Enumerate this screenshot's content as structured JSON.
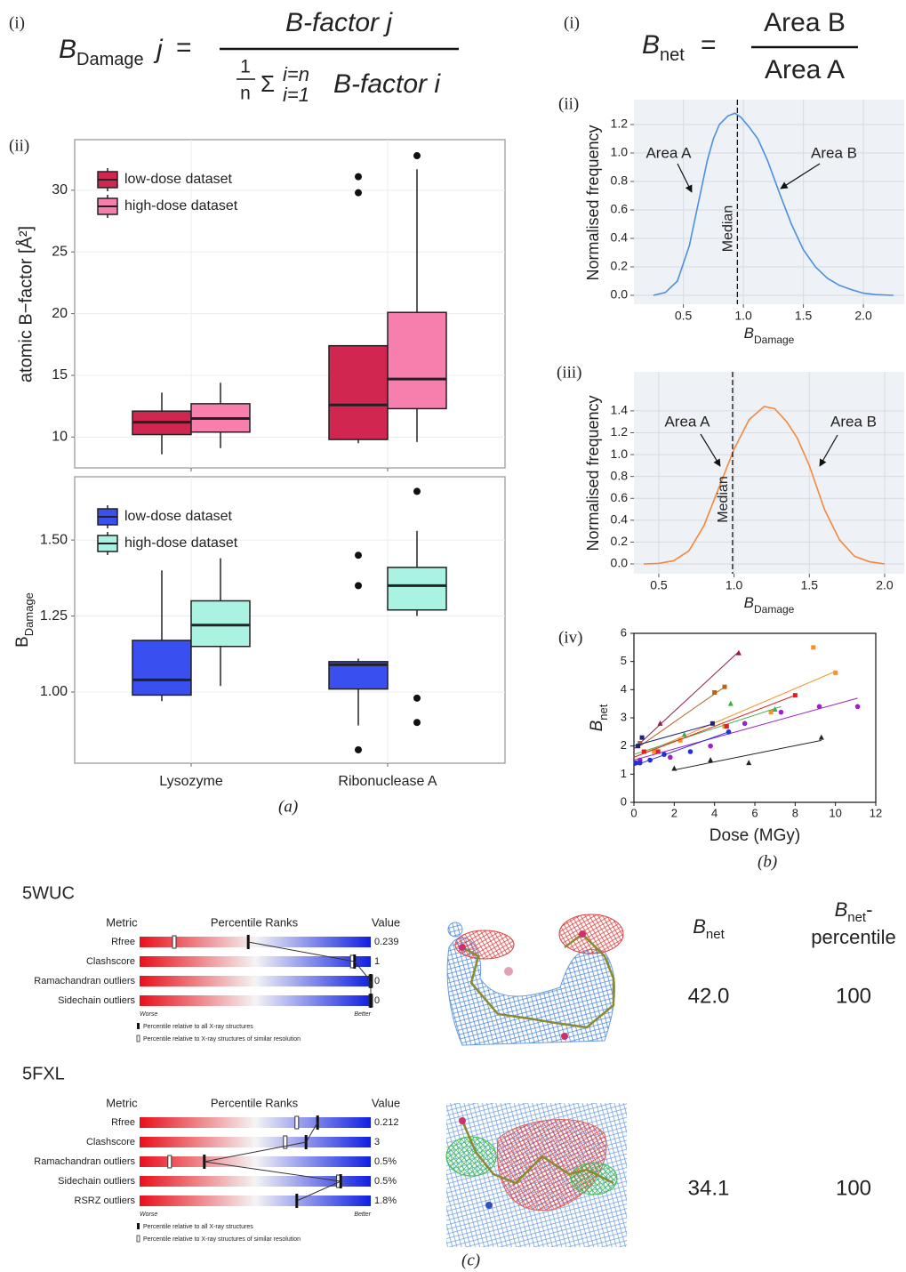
{
  "panel_labels": {
    "a": "(a)",
    "b": "(b)",
    "a_i": "(i)",
    "a_ii": "(ii)",
    "b_i": "(i)",
    "b_ii": "(ii)",
    "b_iii": "(iii)",
    "b_iv": "(iv)"
  },
  "equations": {
    "bdamage": {
      "symbol": "B",
      "subscript": "Damage",
      "index": "j",
      "equals": "=",
      "numerator": "B-factor j",
      "frac_one": "1",
      "frac_n": "n",
      "sigma": "Σ",
      "sum_upper": "i=n",
      "sum_lower": "i=1",
      "denominator": "B-factor i"
    },
    "bnet": {
      "symbol": "B",
      "subscript": "net",
      "equals": "=",
      "numerator": "Area B",
      "denominator": "Area A"
    }
  },
  "chart_data": [
    {
      "type": "box",
      "ylabel": "atomic B−factor [Å²]",
      "categories": [
        null,
        null
      ],
      "ylim": [
        7.5,
        34.1
      ],
      "yticks": [
        10,
        15,
        20,
        25,
        30
      ],
      "grid": true,
      "legend": "top-left",
      "series": [
        {
          "name": "low-dose dataset",
          "color": "#d0264f",
          "whisker_low": [
            8.6,
            9.5
          ],
          "q1": [
            10.2,
            9.8
          ],
          "median": [
            11.2,
            12.6
          ],
          "q3": [
            12.1,
            17.4
          ],
          "whisker_high": [
            13.6,
            17.4
          ],
          "outliers": [
            [],
            [
              29.8,
              31.1
            ]
          ]
        },
        {
          "name": "high-dose dataset",
          "color": "#f77fae",
          "whisker_low": [
            9.1,
            9.6
          ],
          "q1": [
            10.4,
            12.3
          ],
          "median": [
            11.5,
            14.7
          ],
          "q3": [
            12.7,
            20.1
          ],
          "whisker_high": [
            14.4,
            31.7
          ],
          "outliers": [
            [],
            [
              32.8
            ]
          ]
        }
      ]
    },
    {
      "type": "box",
      "ylabel": {
        "symbol": "B",
        "subscript": "Damage"
      },
      "categories": [
        "Lysozyme",
        "Ribonuclease A"
      ],
      "ylim": [
        0.766,
        1.708
      ],
      "yticks": [
        {
          "value": 1,
          "label": "1.00"
        },
        1.25,
        {
          "value": 1.5,
          "label": "1.50"
        }
      ],
      "grid": true,
      "legend": "top-left",
      "series": [
        {
          "name": "low-dose dataset",
          "color": "#3a4ff0",
          "whisker_low": [
            0.97,
            0.89
          ],
          "q1": [
            0.99,
            1.01
          ],
          "median": [
            1.04,
            1.09
          ],
          "q3": [
            1.17,
            1.1
          ],
          "whisker_high": [
            1.4,
            1.11
          ],
          "outliers": [
            [],
            [
              1.45,
              1.35,
              0.81
            ]
          ]
        },
        {
          "name": "high-dose dataset",
          "color": "#aaf2e2",
          "whisker_low": [
            1.02,
            1.25
          ],
          "q1": [
            1.15,
            1.27
          ],
          "median": [
            1.22,
            1.35
          ],
          "q3": [
            1.3,
            1.41
          ],
          "whisker_high": [
            1.44,
            1.53
          ],
          "outliers": [
            [],
            [
              1.66,
              0.98,
              0.9
            ]
          ]
        }
      ]
    },
    {
      "type": "line",
      "ylabel": "Normalised frequency",
      "xlabel": {
        "symbol": "B",
        "subscript": "Damage"
      },
      "color": "#4a90e2",
      "x": [
        0.25,
        0.35,
        0.45,
        0.55,
        0.6,
        0.65,
        0.7,
        0.75,
        0.8,
        0.87,
        0.93,
        0.98,
        1.05,
        1.12,
        1.2,
        1.3,
        1.4,
        1.5,
        1.6,
        1.7,
        1.8,
        1.9,
        2.0,
        2.1,
        2.25
      ],
      "values": [
        0.0,
        0.02,
        0.1,
        0.35,
        0.55,
        0.75,
        0.95,
        1.1,
        1.2,
        1.26,
        1.28,
        1.25,
        1.18,
        1.1,
        0.95,
        0.72,
        0.5,
        0.32,
        0.2,
        0.12,
        0.07,
        0.04,
        0.015,
        0.005,
        0.0
      ],
      "xlim": [
        0.088,
        2.34
      ],
      "ylim": [
        -0.0625,
        1.375
      ],
      "xticks": [
        0.5,
        {
          "value": 1,
          "label": "1.0"
        },
        1.5,
        {
          "value": 2,
          "label": "2.0"
        }
      ],
      "yticks": [
        {
          "value": 0,
          "label": "0.0"
        },
        0.2,
        0.4,
        0.6,
        0.8,
        {
          "value": 1,
          "label": "1.0"
        },
        1.2
      ],
      "grid": true,
      "vline": 0.95,
      "vline_label": "Median",
      "annotations": [
        "Area A",
        "Area B"
      ]
    },
    {
      "type": "line",
      "ylabel": "Normalised frequency",
      "xlabel": {
        "symbol": "B",
        "subscript": "Damage"
      },
      "color": "#f5883a",
      "x": [
        0.4,
        0.5,
        0.6,
        0.7,
        0.8,
        0.9,
        1.0,
        1.1,
        1.2,
        1.27,
        1.35,
        1.42,
        1.5,
        1.55,
        1.6,
        1.7,
        1.8,
        1.9,
        2.0
      ],
      "values": [
        0.0,
        0.005,
        0.03,
        0.12,
        0.35,
        0.7,
        1.05,
        1.32,
        1.44,
        1.42,
        1.3,
        1.15,
        0.9,
        0.7,
        0.5,
        0.22,
        0.07,
        0.02,
        0.0
      ],
      "xlim": [
        0.335,
        2.13
      ],
      "ylim": [
        -0.0894,
        1.757
      ],
      "xticks": [
        0.5,
        {
          "value": 1,
          "label": "1.0"
        },
        1.5,
        {
          "value": 2,
          "label": "2.0"
        }
      ],
      "yticks": [
        {
          "value": 0,
          "label": "0.0"
        },
        0.2,
        0.4,
        0.6,
        0.8,
        {
          "value": 1,
          "label": "1.0"
        },
        1.2,
        1.4
      ],
      "grid": true,
      "vline": 0.99,
      "vline_label": "Median",
      "annotations": [
        "Area A",
        "Area B"
      ]
    },
    {
      "type": "scatter",
      "xlabel": "Dose (MGy)",
      "ylabel": {
        "symbol": "B",
        "subscript": "net"
      },
      "xlim": [
        0,
        12
      ],
      "ylim": [
        0,
        6
      ],
      "xticks": [
        0,
        2,
        4,
        6,
        8,
        10,
        12
      ],
      "yticks": [
        0,
        1,
        2,
        3,
        4,
        5,
        6
      ],
      "series": [
        {
          "color": "#8b1e4f",
          "marker": "triangle",
          "x": [
            0.2,
            1.3,
            5.2
          ],
          "values": [
            2.0,
            2.8,
            5.3
          ],
          "fit": {
            "x": [
              0,
              5.2
            ],
            "values": [
              1.9,
              5.35
            ]
          }
        },
        {
          "color": "#b8621b",
          "marker": "square",
          "x": [
            0.3,
            4.0,
            4.5
          ],
          "values": [
            2.1,
            3.9,
            4.1
          ],
          "fit": {
            "x": [
              0.3,
              4.5
            ],
            "values": [
              2.0,
              4.1
            ]
          }
        },
        {
          "color": "#f5922a",
          "marker": "square",
          "x": [
            1.0,
            2.3,
            4.5,
            6.8,
            8.9,
            10.0
          ],
          "values": [
            1.8,
            2.2,
            2.7,
            3.2,
            5.5,
            4.6
          ],
          "fit": {
            "x": [
              0,
              10
            ],
            "values": [
              1.6,
              4.65
            ]
          }
        },
        {
          "color": "#3cb043",
          "marker": "triangle",
          "x": [
            1.2,
            2.5,
            4.8,
            7.0
          ],
          "values": [
            1.8,
            2.4,
            3.5,
            3.3
          ],
          "fit": {
            "x": [
              0,
              7.3
            ],
            "values": [
              1.7,
              3.4
            ]
          }
        },
        {
          "color": "#e02020",
          "marker": "square",
          "x": [
            0.5,
            1.2,
            4.6,
            8.0
          ],
          "values": [
            1.8,
            1.8,
            2.7,
            3.8
          ],
          "fit": {
            "x": [
              0,
              8
            ],
            "values": [
              1.6,
              3.8
            ]
          }
        },
        {
          "color": "#a020c8",
          "marker": "circle",
          "x": [
            0.3,
            1.8,
            3.8,
            5.5,
            7.3,
            9.2,
            11.1
          ],
          "values": [
            1.5,
            1.6,
            2.0,
            2.8,
            3.2,
            3.4,
            3.4
          ],
          "fit": {
            "x": [
              0,
              11.1
            ],
            "values": [
              1.5,
              3.7
            ]
          }
        },
        {
          "color": "#1a237e",
          "marker": "square",
          "x": [
            0.2,
            0.4,
            3.9
          ],
          "values": [
            2.0,
            2.3,
            2.8
          ],
          "fit": {
            "x": [
              0,
              4
            ],
            "values": [
              2.0,
              2.8
            ]
          }
        },
        {
          "color": "#2030e0",
          "marker": "circle",
          "x": [
            0.1,
            0.3,
            0.8,
            1.5,
            2.8,
            4.7
          ],
          "values": [
            1.4,
            1.4,
            1.5,
            1.7,
            1.8,
            2.5
          ],
          "fit": {
            "x": [
              0,
              4.7
            ],
            "values": [
              1.3,
              2.5
            ]
          }
        },
        {
          "color": "#222222",
          "marker": "triangle",
          "x": [
            2.0,
            3.8,
            5.7,
            9.3
          ],
          "values": [
            1.2,
            1.5,
            1.4,
            2.3
          ],
          "fit": {
            "x": [
              2,
              9.3
            ],
            "values": [
              1.15,
              2.2
            ]
          }
        }
      ]
    }
  ],
  "panel_c": {
    "label": "(c)",
    "xlim": [
      0,
      100
    ],
    "header_bnet": {
      "symbol": "B",
      "subscript": "net"
    },
    "header_percentile": {
      "symbol": "B",
      "subscript": "net",
      "suffix": "-",
      "second_line": "percentile"
    },
    "structures": [
      {
        "id": "5WUC",
        "columns": [
          "Metric",
          "Percentile Ranks",
          "Value"
        ],
        "rows": [
          {
            "metric": "Rfree",
            "value": "0.239",
            "all": 47,
            "similar": 15
          },
          {
            "metric": "Clashscore",
            "value": "1",
            "all": 93,
            "similar": 92
          },
          {
            "metric": "Ramachandran outliers",
            "value": "0",
            "all": 100,
            "similar": 100
          },
          {
            "metric": "Sidechain outliers",
            "value": "0",
            "all": 100,
            "similar": 100
          }
        ],
        "worse": "Worse",
        "better": "Better",
        "key_all": "Percentile relative to all X-ray structures",
        "key_similar": "Percentile relative to X-ray structures of similar resolution",
        "bnet": "42.0",
        "bnet_percentile": "100"
      },
      {
        "id": "5FXL",
        "columns": [
          "Metric",
          "Percentile Ranks",
          "Value"
        ],
        "rows": [
          {
            "metric": "Rfree",
            "value": "0.212",
            "all": 77,
            "similar": 68
          },
          {
            "metric": "Clashscore",
            "value": "3",
            "all": 72,
            "similar": 63
          },
          {
            "metric": "Ramachandran outliers",
            "value": "0.5%",
            "all": 28,
            "similar": 13
          },
          {
            "metric": "Sidechain outliers",
            "value": "0.5%",
            "all": 87,
            "similar": 86
          },
          {
            "metric": "RSRZ outliers",
            "value": "1.8%",
            "all": 68,
            "similar": null
          }
        ],
        "worse": "Worse",
        "better": "Better",
        "key_all": "Percentile relative to all X-ray structures",
        "key_similar": "Percentile relative to X-ray structures of similar resolution",
        "bnet": "34.1",
        "bnet_percentile": "100"
      }
    ]
  }
}
